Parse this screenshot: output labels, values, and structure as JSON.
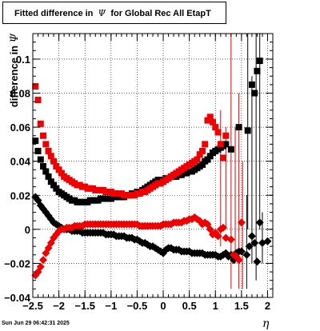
{
  "title_prefix": "Fitted difference in",
  "title_symbol": "Ψ",
  "title_suffix": "for Global Rec All EtapT",
  "ylabel_prefix": "difference in",
  "ylabel_symbol": "Ψ",
  "xlabel": "η",
  "timestamp": "Sun Jun 29 06:42:31 2025",
  "colors": {
    "series_black": "#000000",
    "series_red": "#ee0000",
    "grid": "#000000"
  },
  "chart_data": {
    "type": "scatter",
    "title": "Fitted difference in Ψ for Global Rec All EtapT",
    "xlabel": "η",
    "ylabel": "difference in Ψ",
    "xlim": [
      -2.5,
      2.1
    ],
    "ylim": [
      -0.04,
      0.115
    ],
    "grid": true,
    "x_ticks": [
      -2.5,
      -2,
      -1.5,
      -1,
      -0.5,
      0,
      0.5,
      1,
      1.5,
      2
    ],
    "x_tick_labels": [
      "−2.5",
      "−2",
      "−1.5",
      "−1",
      "−0.5",
      "0",
      "0.5",
      "1",
      "1.5",
      "2"
    ],
    "y_ticks": [
      -0.04,
      -0.02,
      0,
      0.02,
      0.04,
      0.06,
      0.08,
      0.1
    ],
    "y_tick_labels": [
      "−0.04",
      "−0.02",
      "0",
      "0.02",
      "0.04",
      "0.06",
      "0.08",
      "0.1"
    ],
    "series": [
      {
        "marker": "square",
        "color": "#000000",
        "x": [
          -2.45,
          -2.4,
          -2.35,
          -2.3,
          -2.25,
          -2.2,
          -2.15,
          -2.1,
          -2.05,
          -2.0,
          -1.95,
          -1.9,
          -1.85,
          -1.8,
          -1.75,
          -1.7,
          -1.65,
          -1.6,
          -1.55,
          -1.5,
          -1.45,
          -1.4,
          -1.35,
          -1.3,
          -1.25,
          -1.2,
          -1.15,
          -1.1,
          -1.05,
          -1.0,
          -0.95,
          -0.9,
          -0.85,
          -0.8,
          -0.75,
          -0.7,
          -0.65,
          -0.6,
          -0.55,
          -0.5,
          -0.45,
          -0.4,
          -0.35,
          -0.3,
          -0.25,
          -0.2,
          -0.15,
          -0.1,
          -0.05,
          0.0,
          0.05,
          0.1,
          0.15,
          0.2,
          0.25,
          0.3,
          0.35,
          0.4,
          0.45,
          0.5,
          0.55,
          0.6,
          0.65,
          0.7,
          0.75,
          0.8,
          0.85,
          0.9,
          0.95,
          1.0,
          1.05,
          1.1,
          1.15,
          1.2,
          1.3,
          1.45,
          1.62,
          1.7,
          1.75,
          1.8,
          1.85
        ],
        "y": [
          0.052,
          0.046,
          0.041,
          0.037,
          0.034,
          0.031,
          0.028,
          0.026,
          0.024,
          0.022,
          0.021,
          0.02,
          0.019,
          0.018,
          0.017,
          0.017,
          0.016,
          0.016,
          0.016,
          0.016,
          0.016,
          0.017,
          0.017,
          0.017,
          0.017,
          0.018,
          0.018,
          0.018,
          0.018,
          0.018,
          0.019,
          0.019,
          0.019,
          0.019,
          0.019,
          0.02,
          0.02,
          0.021,
          0.021,
          0.022,
          0.022,
          0.023,
          0.024,
          0.025,
          0.026,
          0.027,
          0.028,
          0.029,
          0.029,
          0.029,
          0.03,
          0.03,
          0.031,
          0.031,
          0.031,
          0.032,
          0.032,
          0.033,
          0.033,
          0.034,
          0.034,
          0.035,
          0.036,
          0.037,
          0.038,
          0.04,
          0.041,
          0.043,
          0.045,
          0.046,
          0.047,
          0.048,
          0.049,
          0.05,
          0.047,
          0.06,
          0.058,
          0.085,
          0.08,
          0.093,
          0.099
        ]
      },
      {
        "marker": "diamond",
        "color": "#000000",
        "x": [
          -2.45,
          -2.4,
          -2.35,
          -2.3,
          -2.25,
          -2.2,
          -2.15,
          -2.1,
          -2.05,
          -2.0,
          -1.95,
          -1.9,
          -1.85,
          -1.8,
          -1.75,
          -1.7,
          -1.65,
          -1.6,
          -1.55,
          -1.5,
          -1.45,
          -1.4,
          -1.35,
          -1.3,
          -1.25,
          -1.2,
          -1.15,
          -1.1,
          -1.05,
          -1.0,
          -0.95,
          -0.9,
          -0.85,
          -0.8,
          -0.75,
          -0.7,
          -0.65,
          -0.6,
          -0.55,
          -0.5,
          -0.45,
          -0.4,
          -0.35,
          -0.3,
          -0.25,
          -0.2,
          -0.15,
          -0.1,
          -0.05,
          0.0,
          0.05,
          0.1,
          0.15,
          0.2,
          0.25,
          0.3,
          0.35,
          0.4,
          0.45,
          0.5,
          0.55,
          0.6,
          0.65,
          0.7,
          0.75,
          0.8,
          0.85,
          0.9,
          0.95,
          1.0,
          1.05,
          1.1,
          1.15,
          1.2,
          1.25,
          1.3,
          1.35,
          1.4,
          1.45,
          1.5,
          1.6,
          1.65,
          1.7,
          1.75,
          1.8,
          1.85,
          1.9,
          2.0
        ],
        "y": [
          0.019,
          0.017,
          0.014,
          0.012,
          0.01,
          0.008,
          0.006,
          0.004,
          0.003,
          0.002,
          0.001,
          0.0,
          0.0,
          0.0,
          -0.001,
          -0.001,
          -0.001,
          -0.001,
          -0.002,
          -0.002,
          -0.002,
          -0.002,
          -0.002,
          -0.002,
          -0.002,
          -0.002,
          -0.002,
          -0.003,
          -0.003,
          -0.003,
          -0.003,
          -0.004,
          -0.004,
          -0.004,
          -0.004,
          -0.005,
          -0.005,
          -0.005,
          -0.006,
          -0.006,
          -0.007,
          -0.008,
          -0.008,
          -0.009,
          -0.01,
          -0.01,
          -0.011,
          -0.012,
          -0.013,
          -0.014,
          -0.012,
          -0.011,
          -0.011,
          -0.012,
          -0.012,
          -0.012,
          -0.013,
          -0.013,
          -0.013,
          -0.013,
          -0.014,
          -0.014,
          -0.014,
          -0.014,
          -0.014,
          -0.015,
          -0.015,
          -0.015,
          -0.015,
          -0.015,
          -0.016,
          -0.016,
          -0.015,
          -0.014,
          -0.016,
          -0.015,
          -0.018,
          -0.014,
          -0.013,
          -0.013,
          -0.015,
          -0.01,
          -0.004,
          -0.008,
          -0.019,
          0.004,
          -0.008,
          -0.007
        ]
      },
      {
        "marker": "square",
        "color": "#ee0000",
        "x": [
          -2.45,
          -2.4,
          -2.35,
          -2.3,
          -2.25,
          -2.2,
          -2.15,
          -2.1,
          -2.05,
          -2.0,
          -1.95,
          -1.9,
          -1.85,
          -1.8,
          -1.75,
          -1.7,
          -1.65,
          -1.6,
          -1.55,
          -1.5,
          -1.45,
          -1.4,
          -1.35,
          -1.3,
          -1.25,
          -1.2,
          -1.15,
          -1.1,
          -1.05,
          -1.0,
          -0.95,
          -0.9,
          -0.85,
          -0.8,
          -0.75,
          -0.7,
          -0.65,
          -0.6,
          -0.55,
          -0.5,
          -0.45,
          -0.4,
          -0.35,
          -0.3,
          -0.25,
          -0.2,
          -0.15,
          -0.1,
          -0.05,
          0.0,
          0.05,
          0.1,
          0.15,
          0.2,
          0.25,
          0.3,
          0.35,
          0.4,
          0.45,
          0.5,
          0.55,
          0.6,
          0.65,
          0.7,
          0.75,
          0.8,
          0.85,
          0.9,
          0.95,
          1.0,
          1.05,
          1.1,
          1.15,
          1.2
        ],
        "y": [
          0.084,
          0.076,
          0.062,
          0.055,
          0.05,
          0.046,
          0.043,
          0.04,
          0.037,
          0.035,
          0.033,
          0.031,
          0.03,
          0.029,
          0.028,
          0.027,
          0.026,
          0.026,
          0.025,
          0.025,
          0.024,
          0.024,
          0.024,
          0.023,
          0.023,
          0.023,
          0.023,
          0.022,
          0.022,
          0.022,
          0.021,
          0.021,
          0.021,
          0.021,
          0.02,
          0.02,
          0.02,
          0.02,
          0.02,
          0.021,
          0.021,
          0.022,
          0.022,
          0.023,
          0.024,
          0.025,
          0.026,
          0.027,
          0.027,
          0.028,
          0.029,
          0.03,
          0.031,
          0.032,
          0.033,
          0.034,
          0.035,
          0.036,
          0.037,
          0.038,
          0.039,
          0.04,
          0.041,
          0.044,
          0.046,
          0.05,
          0.064,
          0.066,
          0.063,
          0.06,
          0.057,
          0.05,
          0.042,
          0.055
        ]
      },
      {
        "marker": "diamond",
        "color": "#ee0000",
        "x": [
          -2.45,
          -2.4,
          -2.35,
          -2.3,
          -2.25,
          -2.2,
          -2.15,
          -2.1,
          -2.05,
          -2.0,
          -1.95,
          -1.9,
          -1.85,
          -1.8,
          -1.75,
          -1.7,
          -1.65,
          -1.6,
          -1.55,
          -1.5,
          -1.45,
          -1.4,
          -1.35,
          -1.3,
          -1.25,
          -1.2,
          -1.15,
          -1.1,
          -1.05,
          -1.0,
          -0.95,
          -0.9,
          -0.85,
          -0.8,
          -0.75,
          -0.7,
          -0.65,
          -0.6,
          -0.55,
          -0.5,
          -0.45,
          -0.4,
          -0.35,
          -0.3,
          -0.25,
          -0.2,
          -0.15,
          -0.1,
          -0.05,
          0.0,
          0.05,
          0.1,
          0.15,
          0.2,
          0.25,
          0.3,
          0.35,
          0.4,
          0.45,
          0.5,
          0.55,
          0.6,
          0.65,
          0.7,
          0.75,
          0.8,
          0.85,
          0.9,
          0.95,
          1.0,
          1.05,
          1.1,
          1.15,
          1.2,
          1.3,
          1.35,
          1.4,
          1.45,
          1.5
        ],
        "y": [
          -0.027,
          -0.025,
          -0.022,
          -0.018,
          -0.014,
          -0.011,
          -0.008,
          -0.005,
          -0.003,
          -0.001,
          0.0,
          0.0,
          0.001,
          0.001,
          0.001,
          0.002,
          0.002,
          0.002,
          0.002,
          0.003,
          0.003,
          0.003,
          0.003,
          0.003,
          0.003,
          0.003,
          0.003,
          0.003,
          0.003,
          0.003,
          0.003,
          0.003,
          0.003,
          0.003,
          0.003,
          0.003,
          0.003,
          0.003,
          0.003,
          0.003,
          0.002,
          0.002,
          0.002,
          0.002,
          0.002,
          0.002,
          0.002,
          0.002,
          0.002,
          0.003,
          0.003,
          0.003,
          0.003,
          0.004,
          0.004,
          0.004,
          0.004,
          0.005,
          0.005,
          0.006,
          0.006,
          0.007,
          0.006,
          0.005,
          0.003,
          0.004,
          0.003,
          0.0,
          -0.003,
          -0.002,
          -0.004,
          0.0,
          0.001,
          -0.005,
          -0.006,
          -0.015,
          -0.016,
          -0.018,
          0.004
        ]
      }
    ]
  }
}
